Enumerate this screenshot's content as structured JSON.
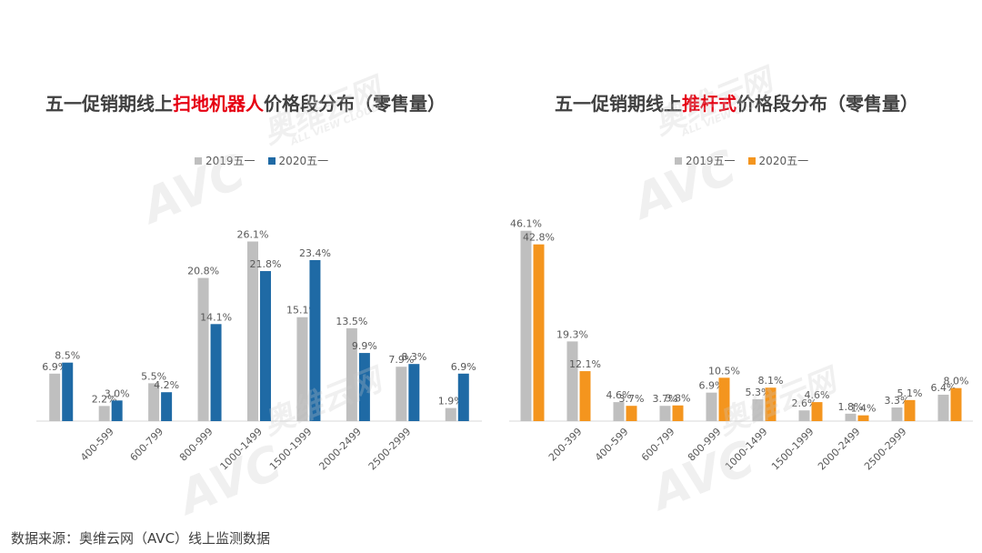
{
  "charts": [
    {
      "title_pre": "五一促销期线上",
      "title_highlight": "扫地机器人",
      "title_post": "价格段分布（零售量）",
      "legend": [
        "2019五一",
        "2020五一"
      ],
      "colors": [
        "#bfbfbf",
        "#1f6aa5"
      ]
    },
    {
      "title_pre": "五一促销期线上",
      "title_highlight": "推杆式",
      "title_post": "价格段分布（零售量）",
      "legend": [
        "2019五一",
        "2020五一"
      ],
      "colors": [
        "#bfbfbf",
        "#f4951e"
      ]
    }
  ],
  "watermark": {
    "logo": "AVC",
    "brand": "奥维云网",
    "tagline": "ALL VIEW CLOUD"
  },
  "footer": {
    "source": "数据来源：奥维云网（AVC）线上监测数据"
  },
  "chart_data": [
    {
      "type": "bar",
      "title": "五一促销期线上扫地机器人价格段分布（零售量）",
      "categories": [
        "",
        "400-599",
        "600-799",
        "800-999",
        "1000-1499",
        "1500-1999",
        "2000-2499",
        "2500-2999",
        ""
      ],
      "series": [
        {
          "name": "2019五一",
          "values": [
            6.9,
            2.2,
            5.5,
            20.8,
            26.1,
            15.1,
            13.5,
            7.9,
            1.9
          ],
          "labels": [
            "6.9%",
            "2.2%",
            "5.5%",
            "20.8%",
            "26.1%",
            "15.1%",
            "13.5%",
            "7.9%",
            "1.9%"
          ]
        },
        {
          "name": "2020五一",
          "values": [
            8.5,
            3.0,
            4.2,
            14.1,
            21.8,
            23.4,
            9.9,
            8.3,
            6.9
          ],
          "labels": [
            "8.5%",
            "3.0%",
            "4.2%",
            "14.1%",
            "21.8%",
            "23.4%",
            "9.9%",
            "8.3%",
            "6.9%"
          ]
        }
      ],
      "legend_position": "top",
      "grid": false
    },
    {
      "type": "bar",
      "title": "五一促销期线上推杆式价格段分布（零售量）",
      "categories": [
        "",
        "200-399",
        "400-599",
        "600-799",
        "800-999",
        "1000-1499",
        "1500-1999",
        "2000-2499",
        "2500-2999",
        ""
      ],
      "series": [
        {
          "name": "2019五一",
          "values": [
            46.1,
            19.3,
            4.6,
            3.7,
            6.9,
            5.3,
            2.6,
            1.8,
            3.3,
            6.4
          ],
          "labels": [
            "46.1%",
            "19.3%",
            "4.6%",
            "3.7%",
            "6.9%",
            "5.3%",
            "2.6%",
            "1.8%",
            "3.3%",
            "6.4%"
          ]
        },
        {
          "name": "2020五一",
          "values": [
            42.8,
            12.1,
            3.7,
            3.8,
            10.5,
            8.1,
            4.6,
            1.4,
            5.1,
            8.0
          ],
          "labels": [
            "42.8%",
            "12.1%",
            "3.7%",
            "3.8%",
            "10.5%",
            "8.1%",
            "4.6%",
            "1.4%",
            "5.1%",
            "8.0%"
          ]
        }
      ],
      "legend_position": "top",
      "grid": false
    }
  ]
}
